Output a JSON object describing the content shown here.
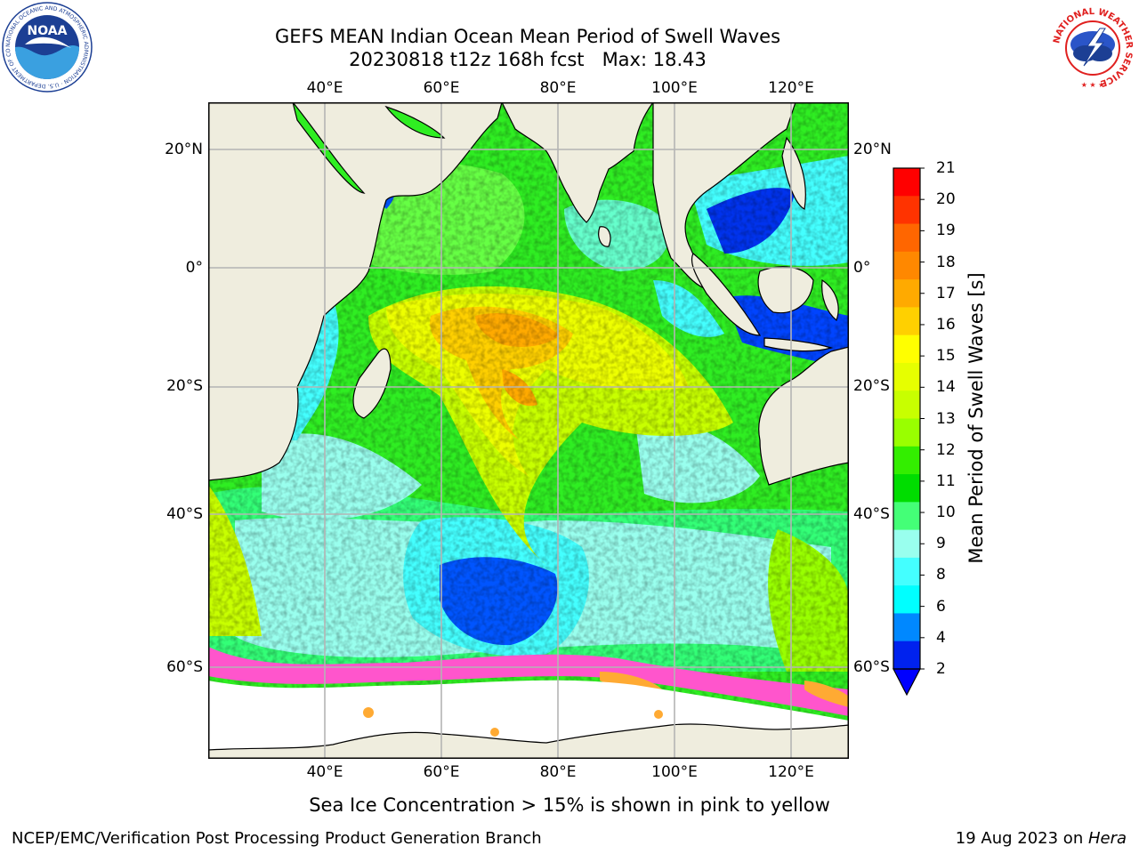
{
  "title": {
    "line1": "GEFS MEAN Indian Ocean Mean Period of Swell Waves",
    "line2": "20230818 t12z 168h fcst   Max: 18.43"
  },
  "map": {
    "lon_range": [
      20,
      130
    ],
    "lat_range": [
      -72,
      28
    ],
    "lon_ticks": [
      "40°E",
      "60°E",
      "80°E",
      "100°E",
      "120°E"
    ],
    "lat_ticks": [
      "20°N",
      "0°",
      "20°S",
      "40°S",
      "60°S"
    ],
    "colors": {
      "land": "#efedde",
      "ice": "#ffffff",
      "grid": "#b4b4b4"
    }
  },
  "colorbar": {
    "label": "Mean Period of Swell Waves [s]",
    "levels": [
      "21",
      "20",
      "19",
      "18",
      "17",
      "16",
      "15",
      "14",
      "13",
      "12",
      "11",
      "10",
      "9",
      "8",
      "6",
      "4",
      "2"
    ],
    "colors": [
      "#ff0000",
      "#ff3300",
      "#ff6600",
      "#ff8800",
      "#ffaa00",
      "#ffd000",
      "#ffff00",
      "#e6ff00",
      "#c8ff00",
      "#99ff00",
      "#33ee00",
      "#00dd00",
      "#44ff77",
      "#99ffee",
      "#44ffff",
      "#00ffff",
      "#0088ff",
      "#0022ee"
    ],
    "extend_color": "#0000ff"
  },
  "annotation": "Sea Ice Concentration > 15% is shown in pink to yellow",
  "footer": {
    "left": "NCEP/EMC/Verification Post Processing Product Generation Branch",
    "date": "19 Aug 2023 on ",
    "host": "Hera"
  },
  "logos": {
    "noaa_text": "NOAA",
    "noaa_ring": "NATIONAL OCEANIC AND ATMOSPHERIC ADMINISTRATION · U.S. DEPARTMENT OF COMMERCE",
    "nws_ring": "NATIONAL WEATHER SERVICE"
  }
}
